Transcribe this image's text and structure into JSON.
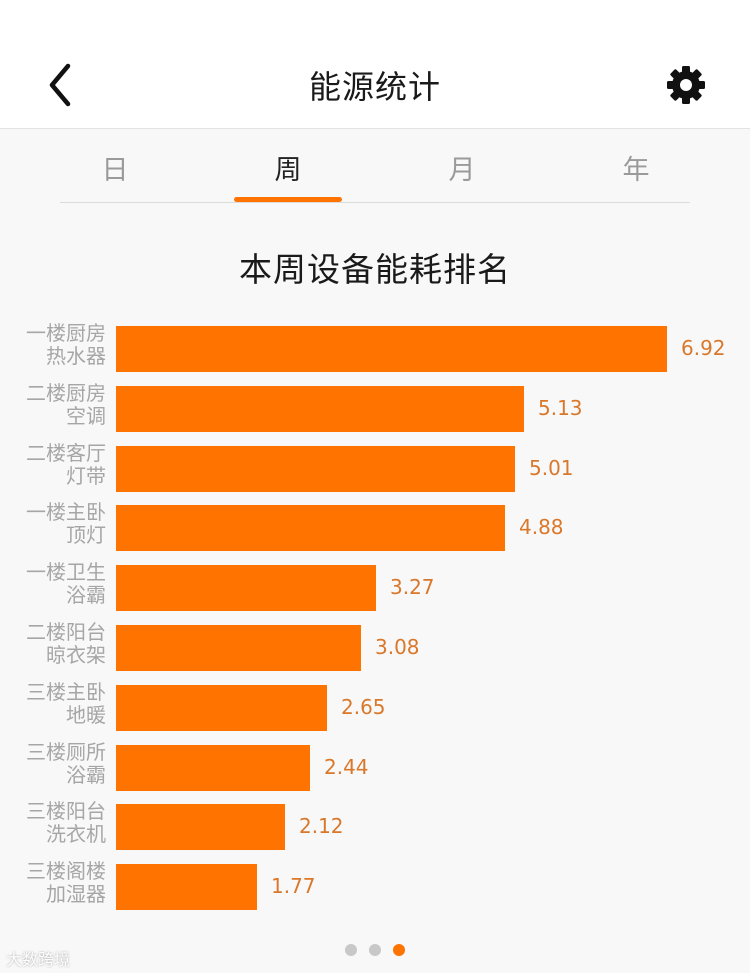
{
  "header": {
    "title": "能源统计",
    "back_icon": "chevron-left-icon",
    "settings_icon": "gear-icon"
  },
  "tabs": [
    {
      "label": "日"
    },
    {
      "label": "周",
      "active": true
    },
    {
      "label": "月"
    },
    {
      "label": "年"
    }
  ],
  "accent_color": "#ff7300",
  "chart_data": {
    "type": "bar",
    "orientation": "horizontal",
    "title": "本周设备能耗排名",
    "bar_color": "#ff7300",
    "xlim": [
      0,
      6.92
    ],
    "categories": [
      [
        "一楼厨房",
        "热水器"
      ],
      [
        "二楼厨房",
        "空调"
      ],
      [
        "二楼客厅",
        "灯带"
      ],
      [
        "一楼主卧",
        "顶灯"
      ],
      [
        "一楼卫生",
        "浴霸"
      ],
      [
        "二楼阳台",
        "晾衣架"
      ],
      [
        "三楼主卧",
        "地暖"
      ],
      [
        "三楼厕所",
        "浴霸"
      ],
      [
        "三楼阳台",
        "洗衣机"
      ],
      [
        "三楼阁楼",
        "加湿器"
      ]
    ],
    "values": [
      6.92,
      5.13,
      5.01,
      4.88,
      3.27,
      3.08,
      2.65,
      2.44,
      2.12,
      1.77
    ],
    "value_labels": [
      "6.92",
      "5.13",
      "5.01",
      "4.88",
      "3.27",
      "3.08",
      "2.65",
      "2.44",
      "2.12",
      "1.77"
    ]
  },
  "pager": {
    "count": 3,
    "active_index": 2
  },
  "watermark": "大数跨境"
}
